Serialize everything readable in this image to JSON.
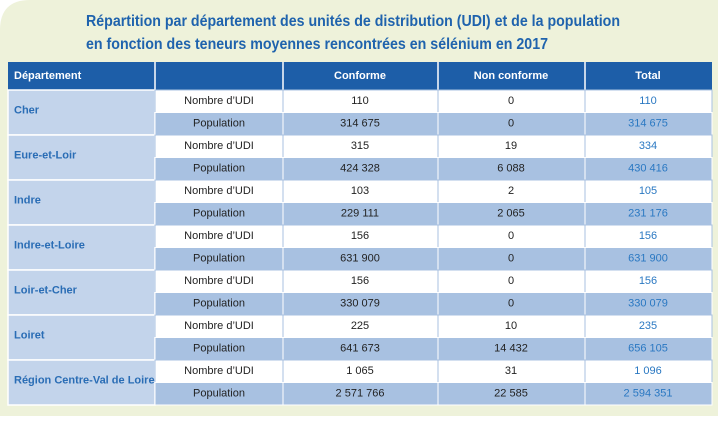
{
  "header": {
    "title": [
      "Répartition par département des unités de distribution (UDI) et de la population",
      "en fonction des teneurs moyennes rencontrées en sélénium en 2017"
    ]
  },
  "table": {
    "columns": [
      "Département",
      "Conforme",
      "Non conforme",
      "Total"
    ],
    "groups": [
      {
        "name": "Cher",
        "rows": [
          [
            "Nombre d’UDI",
            "110",
            "0",
            "110"
          ],
          [
            "Population",
            "314 675",
            "0",
            "314 675"
          ]
        ]
      },
      {
        "name": "Eure-et-Loir",
        "rows": [
          [
            "Nombre d’UDI",
            "315",
            "19",
            "334"
          ],
          [
            "Population",
            "424 328",
            "6 088",
            "430 416"
          ]
        ]
      },
      {
        "name": "Indre",
        "rows": [
          [
            "Nombre d’UDI",
            "103",
            "2",
            "105"
          ],
          [
            "Population",
            "229 111",
            "2 065",
            "231 176"
          ]
        ]
      },
      {
        "name": "Indre-et-Loire",
        "rows": [
          [
            "Nombre d’UDI",
            "156",
            "0",
            "156"
          ],
          [
            "Population",
            "631 900",
            "0",
            "631 900"
          ]
        ]
      },
      {
        "name": "Loir-et-Cher",
        "rows": [
          [
            "Nombre d’UDI",
            "156",
            "0",
            "156"
          ],
          [
            "Population",
            "330 079",
            "0",
            "330 079"
          ]
        ]
      },
      {
        "name": "Loiret",
        "rows": [
          [
            "Nombre d’UDI",
            "225",
            "10",
            "235"
          ],
          [
            "Population",
            "641 673",
            "14 432",
            "656 105"
          ]
        ]
      },
      {
        "name": "Région Centre-Val de Loire",
        "rows": [
          [
            "Nombre d’UDI",
            "1 065",
            "31",
            "1 096"
          ],
          [
            "Population",
            "2 571 766",
            "22 585",
            "2 594 351"
          ]
        ]
      }
    ]
  }
}
